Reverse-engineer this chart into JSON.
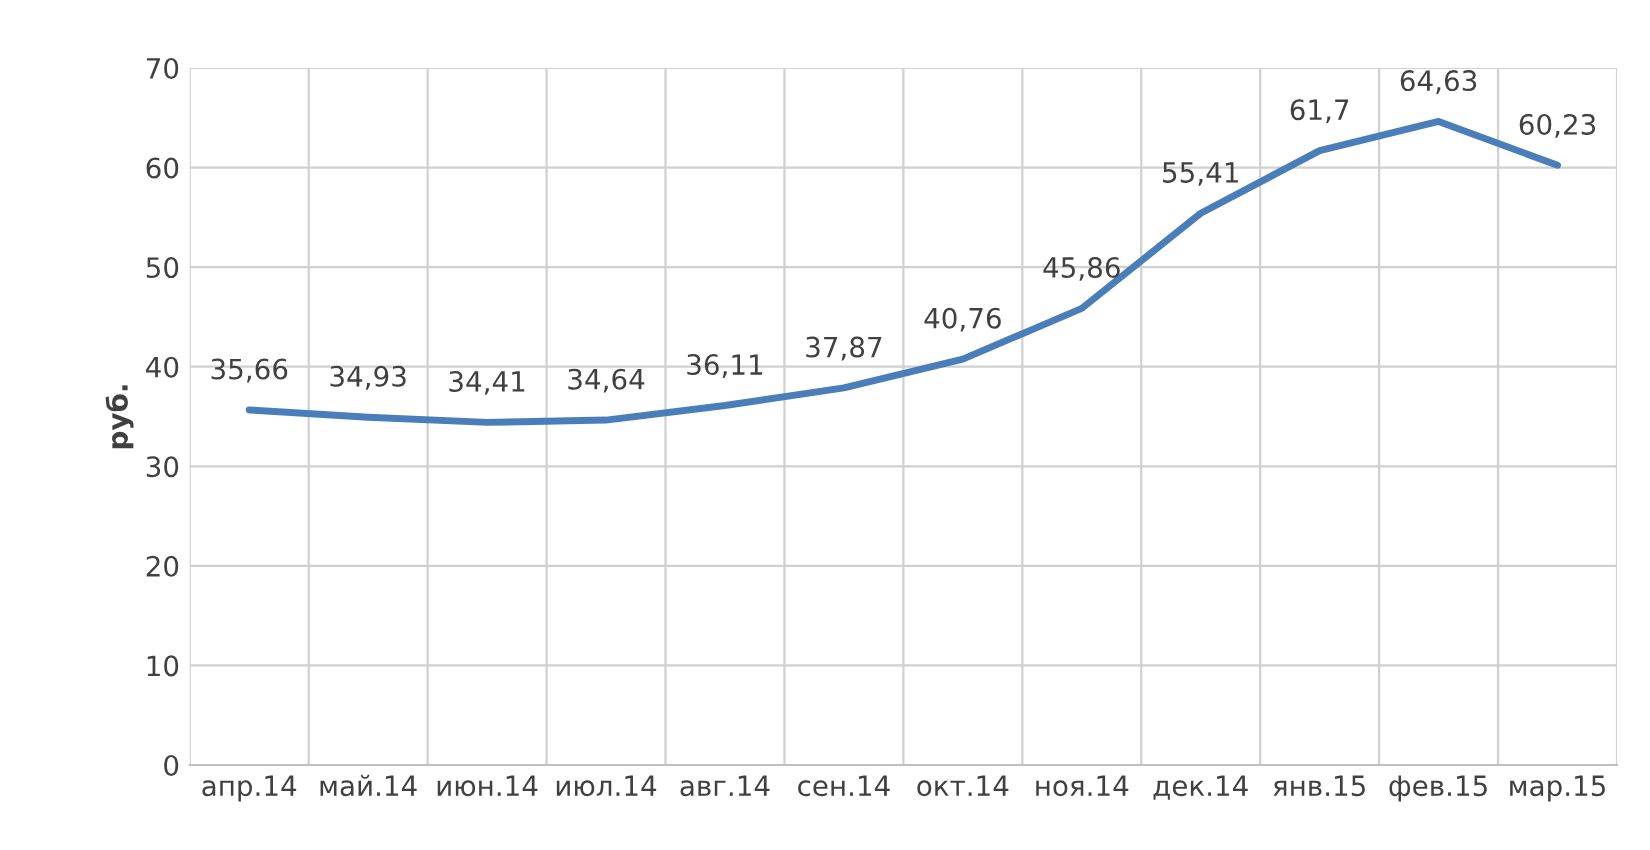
{
  "chart_data": {
    "type": "line",
    "ylabel": "руб.",
    "categories": [
      "апр.14",
      "май.14",
      "июн.14",
      "июл.14",
      "авг.14",
      "сен.14",
      "окт.14",
      "ноя.14",
      "дек.14",
      "янв.15",
      "фев.15",
      "мар.15"
    ],
    "series": [
      {
        "color": "#4a7ebb",
        "values": [
          35.66,
          34.93,
          34.41,
          34.64,
          36.11,
          37.87,
          40.76,
          45.86,
          55.41,
          61.7,
          64.63,
          60.23
        ],
        "value_labels": [
          "35,66",
          "34,93",
          "34,41",
          "34,64",
          "36,11",
          "37,87",
          "40,76",
          "45,86",
          "55,41",
          "61,7",
          "64,63",
          "60,23"
        ]
      }
    ],
    "ylim": [
      0,
      70
    ],
    "yticks": [
      0,
      10,
      20,
      30,
      40,
      50,
      60,
      70
    ],
    "grid": true,
    "marker": "none",
    "line_style": "solid",
    "legend": false
  }
}
